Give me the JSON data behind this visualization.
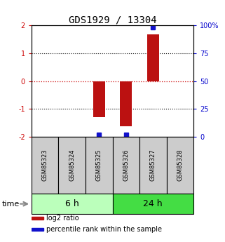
{
  "title": "GDS1929 / 13304",
  "samples": [
    "GSM85323",
    "GSM85324",
    "GSM85325",
    "GSM85326",
    "GSM85327",
    "GSM85328"
  ],
  "log2_ratio": [
    0.0,
    0.0,
    -1.3,
    -1.62,
    1.68,
    0.0
  ],
  "percentile_rank": [
    null,
    null,
    2.0,
    2.0,
    98.0,
    null
  ],
  "ylim_left": [
    -2,
    2
  ],
  "ylim_right": [
    0,
    100
  ],
  "yticks_left": [
    -2,
    -1,
    0,
    1,
    2
  ],
  "yticks_right": [
    0,
    25,
    50,
    75,
    100
  ],
  "ytick_labels_right": [
    "0",
    "25",
    "50",
    "75",
    "100%"
  ],
  "groups": [
    {
      "label": "6 h",
      "start": 0,
      "end": 3,
      "color": "#bbffbb"
    },
    {
      "label": "24 h",
      "start": 3,
      "end": 6,
      "color": "#44dd44"
    }
  ],
  "bar_color": "#bb1111",
  "point_color": "#1111cc",
  "bar_width": 0.45,
  "zero_line_color": "#cc0000",
  "bg_color": "#ffffff",
  "sample_box_color": "#cccccc",
  "legend_items": [
    {
      "label": "log2 ratio",
      "color": "#bb1111"
    },
    {
      "label": "percentile rank within the sample",
      "color": "#1111cc"
    }
  ],
  "time_label": "time",
  "left_axis_color": "#cc0000",
  "right_axis_color": "#0000cc",
  "title_fontsize": 10,
  "tick_fontsize": 7,
  "sample_fontsize": 6,
  "group_fontsize": 9,
  "legend_fontsize": 7
}
